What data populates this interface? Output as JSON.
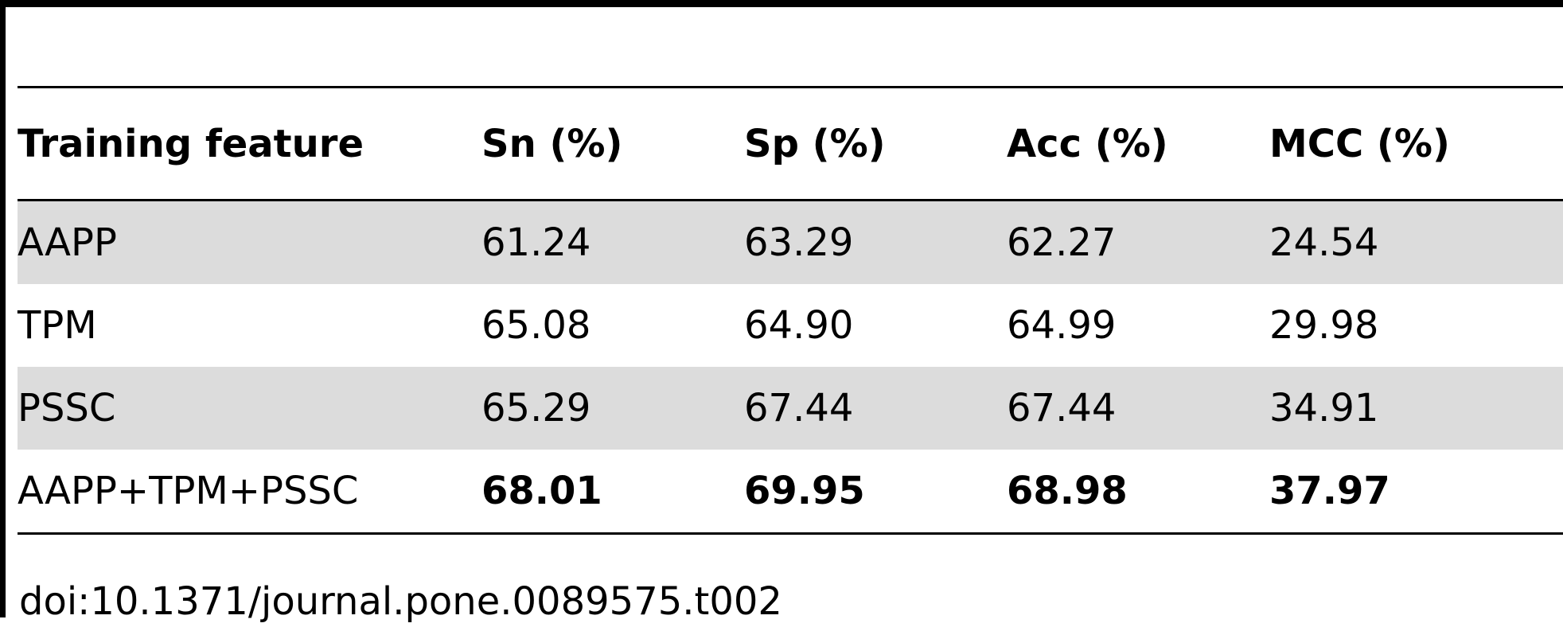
{
  "table": {
    "headers": [
      "Training feature",
      "Sn (%)",
      "Sp (%)",
      "Acc (%)",
      "MCC (%)"
    ],
    "rows": [
      {
        "feature": "AAPP",
        "sn": "61.24",
        "sp": "63.29",
        "acc": "62.27",
        "mcc": "24.54"
      },
      {
        "feature": "TPM",
        "sn": "65.08",
        "sp": "64.90",
        "acc": "64.99",
        "mcc": "29.98"
      },
      {
        "feature": "PSSC",
        "sn": "65.29",
        "sp": "67.44",
        "acc": "67.44",
        "mcc": "34.91"
      },
      {
        "feature": "AAPP+TPM+PSSC",
        "sn": "68.01",
        "sp": "69.95",
        "acc": "68.98",
        "mcc": "37.97"
      }
    ]
  },
  "doi": "doi:10.1371/journal.pone.0089575.t002",
  "colors": {
    "row_shading": "#dcdcdc",
    "rules": "#000000"
  }
}
